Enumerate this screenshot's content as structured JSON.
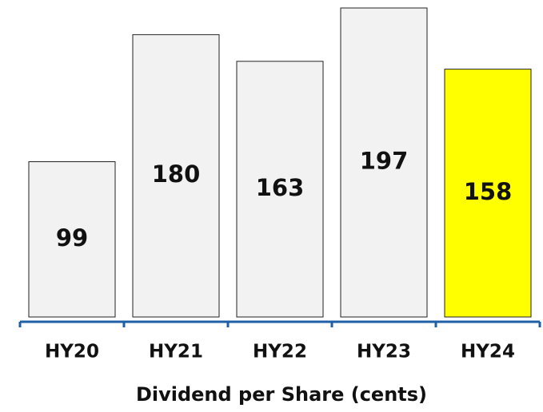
{
  "chart_data": {
    "type": "bar",
    "x_label": "Dividend per Share (cents)",
    "categories": [
      "HY20",
      "HY21",
      "HY22",
      "HY23",
      "HY24"
    ],
    "values": [
      99,
      180,
      163,
      197,
      158
    ],
    "colors": [
      "#f2f2f2",
      "#f2f2f2",
      "#f2f2f2",
      "#f2f2f2",
      "#ffff00"
    ]
  }
}
